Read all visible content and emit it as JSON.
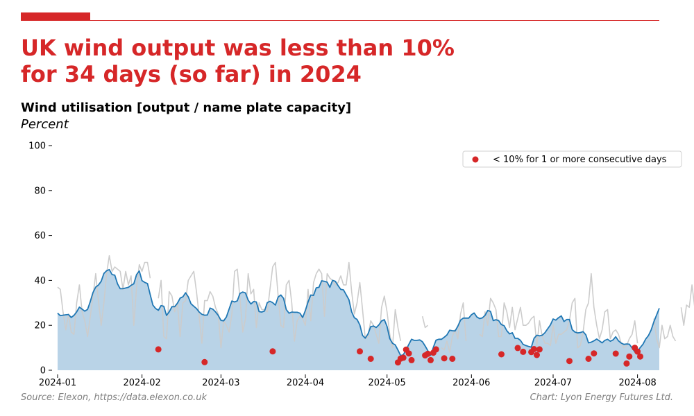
{
  "header": {
    "title_lines": [
      "UK wind output was less than 10%",
      "for 34 days (so far) in 2024"
    ],
    "subtitle": "Wind utilisation [output / name plate capacity]",
    "unit": "Percent"
  },
  "footer": {
    "source": "Source: Elexon, https://data.elexon.co.uk",
    "credit": "Chart: Lyon Energy Futures Ltd."
  },
  "colors": {
    "accent": "#d62728",
    "daily_line": "#cccccc",
    "average_line": "#1f77b4",
    "average_fill": "#b9d3e7",
    "marker": "#d62728"
  },
  "chart_data": {
    "type": "line",
    "xlim": [
      "2024-01-01",
      "2024-08-09"
    ],
    "ylim": [
      0,
      100
    ],
    "yticks": [
      0,
      20,
      40,
      60,
      80,
      100
    ],
    "xticks": [
      "2024-01",
      "2024-02",
      "2024-03",
      "2024-04",
      "2024-05",
      "2024-06",
      "2024-07",
      "2024-08"
    ],
    "legend": {
      "position": "top-right",
      "label": "< 10% for 1 or more consecutive days"
    },
    "series": [
      {
        "role": "daily",
        "start": "2024-01-01",
        "values": [
          37,
          36,
          26,
          18,
          25,
          17,
          16,
          30,
          38,
          26,
          22,
          15,
          24,
          33,
          43,
          31,
          20,
          30,
          43,
          51,
          44,
          46,
          45,
          44,
          36,
          44,
          38,
          42,
          20,
          37,
          47,
          44,
          48,
          48,
          41,
          null,
          null,
          32,
          40,
          15,
          14,
          35,
          33,
          26,
          30,
          15,
          30,
          31,
          40,
          42,
          44,
          35,
          24,
          12,
          31,
          31,
          35,
          33,
          28,
          25,
          10,
          22,
          20,
          17,
          25,
          44,
          45,
          32,
          17,
          23,
          43,
          34,
          36,
          19,
          30,
          27,
          27,
          26,
          36,
          46,
          48,
          33,
          20,
          19,
          38,
          40,
          30,
          13,
          22,
          24,
          23,
          20,
          36,
          22,
          39,
          43,
          45,
          43,
          24,
          43,
          41,
          40,
          38,
          39,
          42,
          38,
          38,
          48,
          35,
          25,
          30,
          39,
          27,
          14,
          15,
          22,
          20,
          16,
          12,
          28,
          33,
          26,
          16,
          10,
          27,
          19,
          13,
          null,
          null,
          null,
          null,
          null,
          null,
          null,
          24,
          19,
          20,
          null,
          null,
          null,
          null,
          10,
          9,
          13,
          8,
          15,
          18,
          14,
          25,
          30,
          13,
          null,
          null,
          null,
          null,
          16,
          15,
          26,
          20,
          32,
          30,
          27,
          15,
          15,
          30,
          26,
          19,
          28,
          18,
          23,
          28,
          20,
          20,
          21,
          23,
          24,
          11,
          22,
          15,
          12,
          12,
          11,
          20,
          12,
          16,
          16,
          17,
          18,
          22,
          30,
          32,
          10,
          11,
          17,
          27,
          30,
          43,
          28,
          20,
          14,
          18,
          26,
          27,
          14,
          17,
          18,
          16,
          12,
          10,
          11,
          14,
          16,
          22,
          12,
          null,
          null,
          null,
          null,
          null,
          23,
          14,
          10,
          20,
          14,
          15,
          20,
          15,
          13,
          null,
          28,
          20,
          29,
          28,
          38,
          28
        ]
      },
      {
        "role": "average",
        "start": "2024-01-01",
        "values": [
          25.4,
          24.3,
          24.5,
          24.7,
          24.8,
          23.5,
          24.4,
          26.0,
          28.1,
          27.2,
          26.3,
          27.1,
          30.6,
          34.6,
          37.0,
          37.9,
          39.6,
          43.1,
          44.3,
          44.8,
          42.6,
          42.3,
          38.5,
          36.3,
          36.3,
          36.6,
          36.9,
          37.8,
          38.5,
          42.6,
          44.2,
          39.9,
          39.1,
          38.6,
          33.7,
          29.0,
          27.5,
          26.7,
          28.8,
          28.5,
          24.4,
          26.0,
          28.3,
          28.3,
          29.8,
          32.1,
          32.7,
          34.5,
          32.7,
          29.6,
          28.5,
          27.5,
          25.9,
          24.9,
          24.5,
          24.6,
          27.7,
          27.2,
          26.0,
          24.4,
          22.2,
          22.0,
          23.7,
          27.3,
          30.8,
          30.4,
          30.9,
          34.2,
          34.8,
          34.4,
          31.2,
          29.5,
          30.6,
          30.4,
          26.1,
          25.9,
          26.4,
          30.1,
          30.7,
          30.1,
          29.0,
          32.6,
          33.5,
          32.0,
          27.0,
          25.4,
          25.9,
          25.8,
          25.8,
          25.4,
          23.5,
          26.6,
          30.4,
          33.5,
          33.3,
          36.7,
          36.9,
          39.8,
          39.6,
          39.2,
          36.9,
          40.0,
          39.6,
          37.7,
          36.0,
          35.8,
          33.6,
          31.4,
          26.0,
          23.4,
          22.6,
          20.2,
          15.5,
          14.3,
          16.1,
          19.4,
          19.7,
          19.0,
          20.2,
          21.9,
          22.5,
          19.5,
          14.1,
          12.0,
          11.3,
          9.0,
          6.5,
          6.9,
          9.1,
          11.5,
          13.8,
          13.3,
          13.3,
          13.5,
          12.7,
          10.8,
          8.7,
          6.7,
          10.2,
          13.4,
          13.8,
          13.8,
          14.7,
          15.7,
          17.8,
          17.6,
          17.5,
          19.6,
          22.3,
          23.2,
          23.2,
          23.2,
          24.7,
          25.5,
          23.7,
          23.0,
          23.3,
          24.4,
          26.6,
          26.2,
          22.1,
          22.5,
          22.1,
          20.3,
          19.8,
          17.6,
          16.2,
          16.7,
          14.2,
          14.2,
          13.3,
          11.5,
          11.0,
          10.6,
          10.3,
          14.2,
          15.6,
          15.3,
          15.6,
          16.7,
          18.5,
          20.2,
          22.8,
          22.3,
          23.4,
          24.2,
          21.7,
          22.6,
          22.6,
          18.1,
          17.0,
          16.6,
          16.8,
          17.2,
          15.8,
          12.2,
          12.5,
          13.1,
          13.9,
          13.1,
          12.2,
          13.3,
          13.8,
          12.9,
          13.5,
          14.9,
          13.1,
          12.1,
          11.5,
          11.7,
          11.6,
          9.9,
          8.2,
          8.5,
          10.1,
          11.6,
          13.9,
          15.4,
          17.9,
          21.6,
          24.6,
          27.6
        ]
      }
    ],
    "markers": {
      "label": "< 10% for 1 or more consecutive days",
      "points": [
        [
          "2024-02-07",
          9.3
        ],
        [
          "2024-02-24",
          3.6
        ],
        [
          "2024-03-20",
          8.4
        ],
        [
          "2024-04-21",
          8.4
        ],
        [
          "2024-04-25",
          5.1
        ],
        [
          "2024-05-05",
          3.5
        ],
        [
          "2024-05-06",
          5.2
        ],
        [
          "2024-05-07",
          5.6
        ],
        [
          "2024-05-08",
          9.2
        ],
        [
          "2024-05-09",
          7.5
        ],
        [
          "2024-05-10",
          4.5
        ],
        [
          "2024-05-15",
          6.6
        ],
        [
          "2024-05-16",
          7.3
        ],
        [
          "2024-05-17",
          4.5
        ],
        [
          "2024-05-18",
          7.8
        ],
        [
          "2024-05-19",
          9.3
        ],
        [
          "2024-05-22",
          5.3
        ],
        [
          "2024-05-25",
          5.1
        ],
        [
          "2024-06-12",
          7.1
        ],
        [
          "2024-06-18",
          9.9
        ],
        [
          "2024-06-20",
          8.2
        ],
        [
          "2024-06-23",
          8.1
        ],
        [
          "2024-06-24",
          9.4
        ],
        [
          "2024-06-25",
          6.8
        ],
        [
          "2024-06-26",
          9.3
        ],
        [
          "2024-07-07",
          4.1
        ],
        [
          "2024-07-14",
          5.1
        ],
        [
          "2024-07-16",
          7.5
        ],
        [
          "2024-07-24",
          7.4
        ],
        [
          "2024-07-28",
          3.0
        ],
        [
          "2024-07-29",
          6.1
        ],
        [
          "2024-07-31",
          10.0
        ],
        [
          "2024-08-01",
          8.3
        ],
        [
          "2024-08-02",
          6.1
        ]
      ]
    }
  }
}
